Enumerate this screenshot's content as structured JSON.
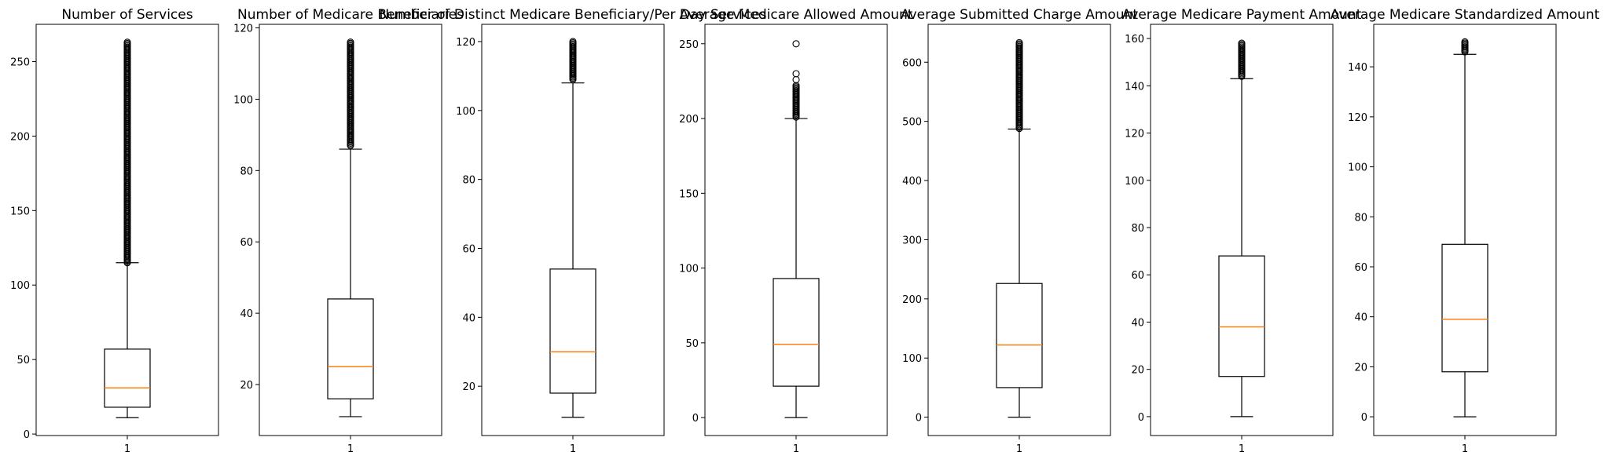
{
  "chart_data": [
    {
      "type": "boxplot",
      "title": "Number of Services",
      "x_tick": "1",
      "ylim": [
        -1,
        275
      ],
      "yticks": [
        0,
        50,
        100,
        150,
        200,
        250
      ],
      "box": {
        "whisker_low": 11,
        "q1": 18,
        "median": 31,
        "q3": 57,
        "whisker_high": 115
      },
      "outliers": {
        "dense_range": [
          115,
          263
        ]
      }
    },
    {
      "type": "boxplot",
      "title": "Number of Medicare Beneficiaries",
      "x_tick": "1",
      "ylim": [
        5.7,
        121
      ],
      "yticks": [
        20,
        40,
        60,
        80,
        100,
        120
      ],
      "box": {
        "whisker_low": 11,
        "q1": 16,
        "median": 25,
        "q3": 44,
        "whisker_high": 86
      },
      "outliers": {
        "dense_range": [
          87,
          116
        ]
      }
    },
    {
      "type": "boxplot",
      "title": "Number of Distinct Medicare Beneficiary/Per Day Services",
      "x_tick": "1",
      "ylim": [
        5.7,
        125
      ],
      "yticks": [
        20,
        40,
        60,
        80,
        100,
        120
      ],
      "box": {
        "whisker_low": 11,
        "q1": 18,
        "median": 30,
        "q3": 54,
        "whisker_high": 108
      },
      "outliers": {
        "dense_range": [
          109,
          120
        ]
      }
    },
    {
      "type": "boxplot",
      "title": "Average Medicare Allowed Amount",
      "x_tick": "1",
      "ylim": [
        -12,
        263
      ],
      "yticks": [
        0,
        50,
        100,
        150,
        200,
        250
      ],
      "box": {
        "whisker_low": 0,
        "q1": 21,
        "median": 49,
        "q3": 93,
        "whisker_high": 200
      },
      "outliers": {
        "dense_range": [
          201,
          222
        ],
        "points": [
          226,
          230,
          250
        ]
      }
    },
    {
      "type": "boxplot",
      "title": "Average Submitted Charge Amount",
      "x_tick": "1",
      "ylim": [
        -31,
        664
      ],
      "yticks": [
        0,
        100,
        200,
        300,
        400,
        500,
        600
      ],
      "box": {
        "whisker_low": 0,
        "q1": 50,
        "median": 122,
        "q3": 226,
        "whisker_high": 487
      },
      "outliers": {
        "dense_range": [
          488,
          633
        ]
      }
    },
    {
      "type": "boxplot",
      "title": "Average Medicare Payment Amount",
      "x_tick": "1",
      "ylim": [
        -8,
        166
      ],
      "yticks": [
        0,
        20,
        40,
        60,
        80,
        100,
        120,
        140,
        160
      ],
      "box": {
        "whisker_low": 0,
        "q1": 17,
        "median": 38,
        "q3": 68,
        "whisker_high": 143
      },
      "outliers": {
        "dense_range": [
          144,
          158
        ]
      }
    },
    {
      "type": "boxplot",
      "title": "Average Medicare Standardized Amount",
      "x_tick": "1",
      "ylim": [
        -7.5,
        157
      ],
      "yticks": [
        0,
        20,
        40,
        60,
        80,
        100,
        120,
        140
      ],
      "box": {
        "whisker_low": 0,
        "q1": 18,
        "median": 39,
        "q3": 69,
        "whisker_high": 145
      },
      "outliers": {
        "dense_range": [
          146,
          150
        ]
      }
    }
  ]
}
